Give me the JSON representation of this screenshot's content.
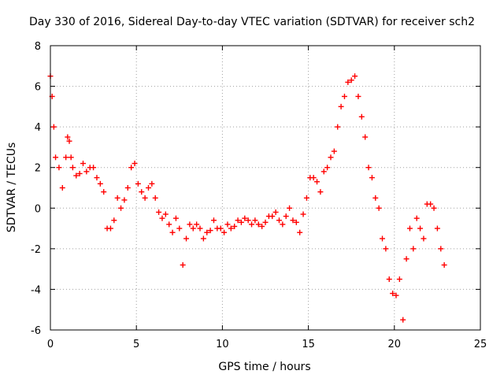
{
  "chart_data": {
    "type": "scatter",
    "title": "Day 330 of 2016, Sidereal Day-to-day VTEC variation (SDTVAR) for receiver sch2",
    "xlabel": "GPS time / hours",
    "ylabel": "SDTVAR / TECUs",
    "xlim": [
      0,
      25
    ],
    "ylim": [
      -6,
      8
    ],
    "xticks": [
      0,
      5,
      10,
      15,
      20,
      25
    ],
    "yticks": [
      -6,
      -4,
      -2,
      0,
      2,
      4,
      6,
      8
    ],
    "grid": true,
    "marker": "+",
    "series": [
      {
        "name": "sch2",
        "color": "#ff0000",
        "x": [
          0.0,
          0.1,
          0.2,
          0.3,
          0.5,
          0.7,
          0.9,
          1.0,
          1.1,
          1.2,
          1.3,
          1.5,
          1.7,
          1.9,
          2.1,
          2.3,
          2.5,
          2.7,
          2.9,
          3.1,
          3.3,
          3.5,
          3.7,
          3.9,
          4.1,
          4.3,
          4.5,
          4.7,
          4.9,
          5.1,
          5.3,
          5.5,
          5.7,
          5.9,
          6.1,
          6.3,
          6.5,
          6.7,
          6.9,
          7.1,
          7.3,
          7.5,
          7.7,
          7.9,
          8.1,
          8.3,
          8.5,
          8.7,
          8.9,
          9.1,
          9.3,
          9.5,
          9.7,
          9.9,
          10.1,
          10.3,
          10.5,
          10.7,
          10.9,
          11.1,
          11.3,
          11.5,
          11.7,
          11.9,
          12.1,
          12.3,
          12.5,
          12.7,
          12.9,
          13.1,
          13.3,
          13.5,
          13.7,
          13.9,
          14.1,
          14.3,
          14.5,
          14.7,
          14.9,
          15.1,
          15.3,
          15.5,
          15.7,
          15.9,
          16.1,
          16.3,
          16.5,
          16.7,
          16.9,
          17.1,
          17.3,
          17.5,
          17.7,
          17.9,
          18.1,
          18.3,
          18.5,
          18.7,
          18.9,
          19.1,
          19.3,
          19.5,
          19.7,
          19.9,
          20.1,
          20.3,
          20.5,
          20.7,
          20.9,
          21.1,
          21.3,
          21.5,
          21.7,
          21.9,
          22.1,
          22.3,
          22.5,
          22.7,
          22.9
        ],
        "y": [
          6.5,
          5.5,
          4.0,
          2.5,
          2.0,
          1.0,
          2.5,
          3.5,
          3.3,
          2.5,
          2.0,
          1.6,
          1.7,
          2.2,
          1.8,
          2.0,
          2.0,
          1.5,
          1.2,
          0.8,
          -1.0,
          -1.0,
          -0.6,
          0.5,
          0.0,
          0.4,
          1.0,
          2.0,
          2.2,
          1.2,
          0.8,
          0.5,
          1.0,
          1.2,
          0.5,
          -0.2,
          -0.5,
          -0.3,
          -0.8,
          -1.2,
          -0.5,
          -1.0,
          -2.8,
          -1.5,
          -0.8,
          -1.0,
          -0.8,
          -1.0,
          -1.5,
          -1.2,
          -1.1,
          -0.6,
          -1.0,
          -1.0,
          -1.2,
          -0.8,
          -1.0,
          -0.9,
          -0.6,
          -0.7,
          -0.5,
          -0.6,
          -0.8,
          -0.6,
          -0.8,
          -0.9,
          -0.7,
          -0.4,
          -0.4,
          -0.2,
          -0.6,
          -0.8,
          -0.4,
          0.0,
          -0.6,
          -0.7,
          -1.2,
          -0.3,
          0.5,
          1.5,
          1.5,
          1.3,
          0.8,
          1.8,
          2.0,
          2.5,
          2.8,
          4.0,
          5.0,
          5.5,
          6.2,
          6.3,
          6.5,
          5.5,
          4.5,
          3.5,
          2.0,
          1.5,
          0.5,
          0.0,
          -1.5,
          -2.0,
          -3.5,
          -4.2,
          -4.3,
          -3.5,
          -5.5,
          -2.5,
          -1.0,
          -2.0,
          -0.5,
          -1.0,
          -1.5,
          0.2,
          0.2,
          0.0,
          -1.0,
          -2.0,
          -2.8
        ]
      }
    ]
  }
}
